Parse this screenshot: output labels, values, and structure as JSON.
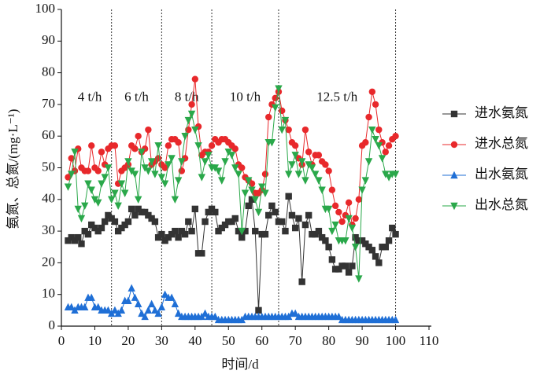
{
  "chart_data": {
    "type": "line",
    "xlabel": "时间/d",
    "ylabel": "氨氮、总氮/(mg·L⁻¹)",
    "xlim": [
      0,
      110
    ],
    "xticks": [
      0,
      10,
      20,
      30,
      40,
      50,
      60,
      70,
      80,
      90,
      100,
      110
    ],
    "ylim": [
      0,
      100
    ],
    "yticks": [
      0,
      10,
      20,
      30,
      40,
      50,
      60,
      70,
      80,
      90,
      100
    ],
    "phases": [
      {
        "label": "4 t/h",
        "end": 15
      },
      {
        "label": "6 t/h",
        "end": 30
      },
      {
        "label": "8 t/h",
        "end": 45
      },
      {
        "label": "10 t/h",
        "end": 65
      },
      {
        "label": "12.5 t/h",
        "end": 100
      }
    ],
    "x": [
      2,
      3,
      4,
      5,
      6,
      7,
      8,
      9,
      10,
      11,
      12,
      13,
      14,
      15,
      16,
      17,
      18,
      19,
      20,
      21,
      22,
      23,
      24,
      25,
      26,
      27,
      28,
      29,
      30,
      31,
      32,
      33,
      34,
      35,
      36,
      37,
      38,
      39,
      40,
      41,
      42,
      43,
      44,
      45,
      46,
      47,
      48,
      49,
      50,
      51,
      52,
      53,
      54,
      55,
      56,
      57,
      58,
      59,
      60,
      61,
      62,
      63,
      64,
      65,
      66,
      67,
      68,
      69,
      70,
      71,
      72,
      73,
      74,
      75,
      76,
      77,
      78,
      79,
      80,
      81,
      82,
      83,
      84,
      85,
      86,
      87,
      88,
      89,
      90,
      91,
      92,
      93,
      94,
      95,
      96,
      97,
      98,
      99,
      100
    ],
    "series": [
      {
        "name": "进水氨氮",
        "color": "#333333",
        "marker": "square",
        "values": [
          27,
          28,
          27,
          28,
          26,
          30,
          29,
          32,
          31,
          30,
          31,
          33,
          35,
          34,
          33,
          30,
          31,
          32,
          33,
          37,
          35,
          37,
          36,
          36,
          35,
          34,
          33,
          28,
          29,
          27,
          28,
          29,
          30,
          28,
          30,
          29,
          33,
          30,
          37,
          23,
          23,
          33,
          36,
          37,
          36,
          30,
          31,
          32,
          33,
          33,
          34,
          30,
          28,
          30,
          38,
          40,
          30,
          5,
          29,
          29,
          35,
          38,
          36,
          33,
          33,
          30,
          41,
          35,
          31,
          34,
          14,
          32,
          35,
          29,
          29,
          30,
          28,
          27,
          25,
          21,
          18,
          18,
          19,
          19,
          17,
          19,
          28,
          27,
          27,
          26,
          25,
          24,
          22,
          20,
          25,
          25,
          27,
          31,
          29
        ]
      },
      {
        "name": "进水总氮",
        "color": "#e8282b",
        "marker": "circle",
        "values": [
          47,
          53,
          49,
          56,
          50,
          49,
          49,
          57,
          50,
          49,
          55,
          51,
          56,
          57,
          57,
          45,
          49,
          50,
          51,
          57,
          56,
          60,
          55,
          56,
          62,
          51,
          52,
          53,
          51,
          50,
          57,
          59,
          59,
          58,
          49,
          53,
          62,
          70,
          78,
          63,
          54,
          55,
          55,
          57,
          59,
          58,
          59,
          59,
          58,
          57,
          56,
          51,
          50,
          47,
          46,
          45,
          42,
          42,
          43,
          48,
          66,
          70,
          72,
          74,
          68,
          65,
          62,
          58,
          57,
          53,
          51,
          62,
          55,
          51,
          54,
          54,
          52,
          51,
          49,
          43,
          38,
          36,
          33,
          35,
          39,
          32,
          34,
          40,
          57,
          58,
          66,
          74,
          70,
          62,
          58,
          55,
          57,
          59,
          60
        ]
      },
      {
        "name": "出水氨氮",
        "color": "#1f6fd6",
        "marker": "triangle",
        "values": [
          6,
          6,
          5,
          6,
          6,
          6,
          9,
          9,
          6,
          6,
          5,
          5,
          5,
          4,
          5,
          4,
          5,
          8,
          8,
          12,
          9,
          7,
          4,
          3,
          5,
          7,
          5,
          4,
          6,
          10,
          9,
          9,
          7,
          4,
          3,
          3,
          3,
          3,
          3,
          3,
          3,
          4,
          3,
          3,
          3,
          2,
          2,
          2,
          2,
          2,
          2,
          2,
          2,
          3,
          3,
          3,
          3,
          3,
          3,
          3,
          3,
          3,
          3,
          3,
          3,
          3,
          3,
          4,
          4,
          3,
          3,
          3,
          3,
          3,
          3,
          3,
          3,
          3,
          3,
          3,
          3,
          3,
          2,
          2,
          2,
          2,
          2,
          2,
          2,
          2,
          2,
          2,
          2,
          2,
          2,
          2,
          2,
          2,
          2
        ]
      },
      {
        "name": "出水总氮",
        "color": "#2aa84a",
        "marker": "triangle-down",
        "values": [
          44,
          48,
          55,
          37,
          34,
          38,
          45,
          43,
          40,
          39,
          45,
          47,
          50,
          40,
          42,
          38,
          45,
          42,
          52,
          49,
          48,
          40,
          55,
          50,
          49,
          52,
          48,
          57,
          47,
          45,
          51,
          53,
          40,
          46,
          52,
          60,
          65,
          67,
          62,
          57,
          47,
          52,
          54,
          50,
          50,
          49,
          46,
          52,
          55,
          54,
          50,
          48,
          30,
          42,
          46,
          43,
          40,
          36,
          44,
          42,
          58,
          58,
          69,
          75,
          62,
          65,
          48,
          51,
          54,
          48,
          52,
          46,
          51,
          50,
          48,
          46,
          43,
          37,
          37,
          30,
          32,
          27,
          27,
          27,
          34,
          31,
          25,
          15,
          43,
          46,
          52,
          62,
          59,
          57,
          53,
          48,
          47,
          48,
          48
        ]
      }
    ]
  }
}
